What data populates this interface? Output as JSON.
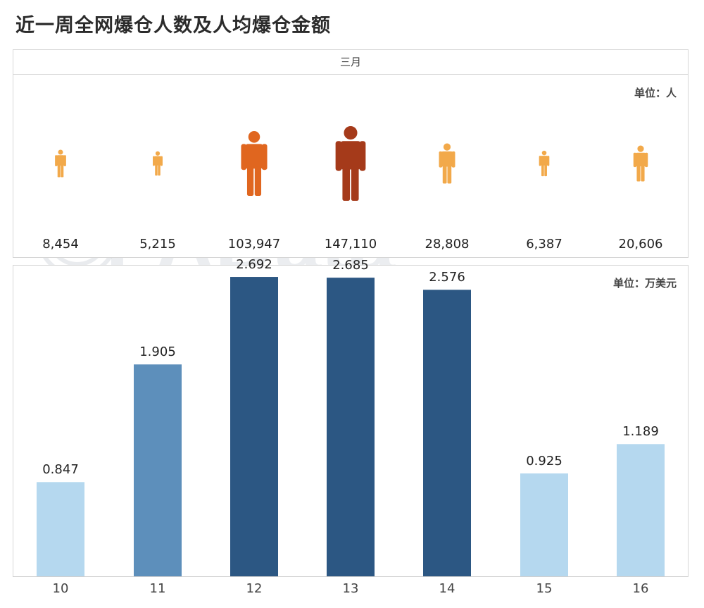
{
  "title": "近一周全网爆仓人数及人均爆仓金额",
  "month_header": "三月",
  "unit_top": "单位：人",
  "unit_bottom": "单位：万美元",
  "watermarks": {
    "data_brand": "PAData",
    "cn_brand": "合约帝",
    "en_brand": "TRADING MASTER"
  },
  "colors": {
    "person_small": "#f2a94a",
    "person_medium": "#e0661f",
    "person_large": "#a53a1a",
    "bar_light": "#b5d8ef",
    "bar_mid": "#5d8fbb",
    "bar_dark": "#2c5783"
  },
  "chart_data": [
    {
      "type": "pictogram",
      "categories": [
        "10",
        "11",
        "12",
        "13",
        "14",
        "15",
        "16"
      ],
      "values": [
        8454,
        5215,
        103947,
        147110,
        28808,
        6387,
        20606
      ],
      "labels": [
        "8,454",
        "5,215",
        "103,947",
        "147,110",
        "28,808",
        "6,387",
        "20,606"
      ],
      "unit": "单位：人"
    },
    {
      "type": "bar",
      "categories": [
        "10",
        "11",
        "12",
        "13",
        "14",
        "15",
        "16"
      ],
      "values": [
        0.847,
        1.905,
        2.692,
        2.685,
        2.576,
        0.925,
        1.189
      ],
      "labels": [
        "0.847",
        "1.905",
        "2.692",
        "2.685",
        "2.576",
        "0.925",
        "1.189"
      ],
      "unit": "单位：万美元",
      "ylim": [
        0,
        2.8
      ]
    }
  ]
}
